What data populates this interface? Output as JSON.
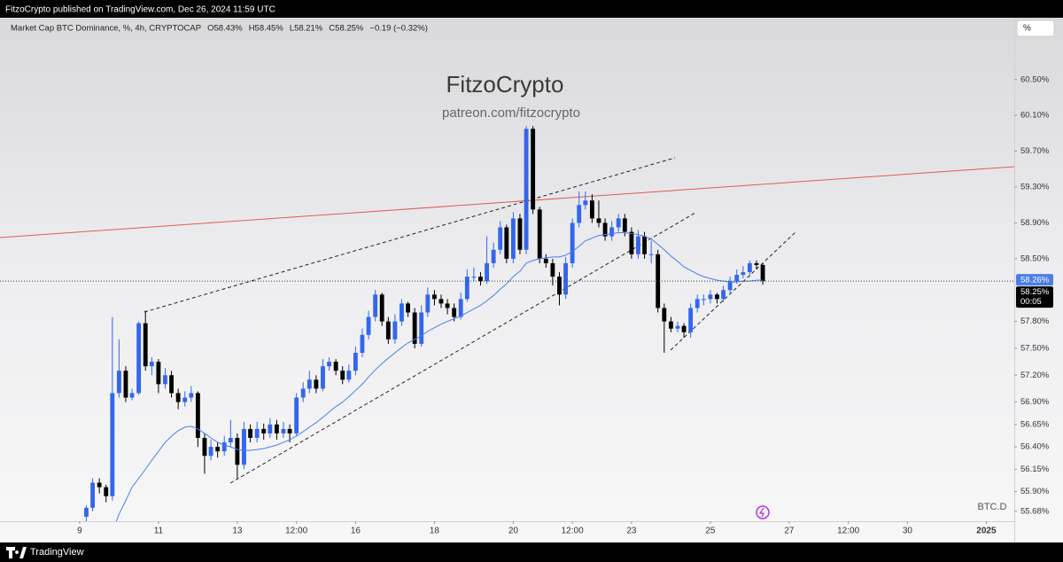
{
  "header": {
    "text": "FitzoCrypto published on TradingView.com, Dec 26, 2024 11:59 UTC"
  },
  "scale_button": "%",
  "footer": {
    "brand": "TradingView"
  },
  "chart_data": {
    "type": "candlestick",
    "legend_items": [
      "Market Cap BTC Dominance, %, 4h, CRYPTOCAP",
      "O58.43%",
      "H58.45%",
      "L58.21%",
      "C58.25%",
      "−0.19 (−0.32%)"
    ],
    "watermark": {
      "title": "FitzoCrypto",
      "subtitle": "patreon.com/fitzocrypto"
    },
    "symbol_label": "BTC.D",
    "up_color": "#3366ee",
    "down_color": "#000000",
    "x": [
      9.17,
      9.33,
      9.5,
      9.67,
      9.83,
      10,
      10.17,
      10.33,
      10.5,
      10.67,
      10.83,
      11,
      11.17,
      11.33,
      11.5,
      11.67,
      11.83,
      12,
      12.17,
      12.33,
      12.5,
      12.67,
      12.83,
      13,
      13.17,
      13.33,
      13.5,
      13.67,
      13.83,
      14,
      14.17,
      14.33,
      14.5,
      14.67,
      14.83,
      15,
      15.17,
      15.33,
      15.5,
      15.67,
      15.83,
      16,
      16.17,
      16.33,
      16.5,
      16.67,
      16.83,
      17,
      17.17,
      17.33,
      17.5,
      17.67,
      17.83,
      18,
      18.17,
      18.33,
      18.5,
      18.67,
      18.83,
      19,
      19.17,
      19.33,
      19.5,
      19.67,
      19.83,
      20,
      20.17,
      20.33,
      20.5,
      20.67,
      20.83,
      21,
      21.17,
      21.33,
      21.5,
      21.67,
      21.83,
      22,
      22.17,
      22.33,
      22.5,
      22.67,
      22.83,
      23,
      23.17,
      23.33,
      23.5,
      23.67,
      23.83,
      24,
      24.17,
      24.33,
      24.5,
      24.67,
      24.83,
      25,
      25.17,
      25.33,
      25.5,
      25.67,
      25.83,
      26,
      26.17,
      26.33
    ],
    "open": [
      55.62,
      55.72,
      56.0,
      55.95,
      55.85,
      57.0,
      57.25,
      56.95,
      57.0,
      57.78,
      57.3,
      57.35,
      57.1,
      57.2,
      57.0,
      56.9,
      56.95,
      57.0,
      56.5,
      56.3,
      56.4,
      56.35,
      56.45,
      56.5,
      56.2,
      56.6,
      56.5,
      56.6,
      56.55,
      56.65,
      56.55,
      56.6,
      56.55,
      56.95,
      57.05,
      57.15,
      57.05,
      57.3,
      57.35,
      57.25,
      57.15,
      57.25,
      57.45,
      57.65,
      57.85,
      58.1,
      57.8,
      57.6,
      57.8,
      58.0,
      57.9,
      57.55,
      57.9,
      58.1,
      58.05,
      58.0,
      57.95,
      57.85,
      58.05,
      58.3,
      58.3,
      58.25,
      58.45,
      58.6,
      58.85,
      58.5,
      58.95,
      58.6,
      59.95,
      59.05,
      58.5,
      58.45,
      58.3,
      58.1,
      58.45,
      58.9,
      59.1,
      59.15,
      58.95,
      58.9,
      58.75,
      58.85,
      58.95,
      58.8,
      58.55,
      58.75,
      58.55,
      58.55,
      57.95,
      57.8,
      57.72,
      57.75,
      57.68,
      57.95,
      58.05,
      58.05,
      58.1,
      58.05,
      58.15,
      58.25,
      58.32,
      58.35,
      58.45,
      58.43
    ],
    "high": [
      55.75,
      56.05,
      56.05,
      55.98,
      57.85,
      57.6,
      57.3,
      57.05,
      57.8,
      57.92,
      57.4,
      57.38,
      57.28,
      57.25,
      57.05,
      57.02,
      57.08,
      57.02,
      56.55,
      56.48,
      56.45,
      56.52,
      56.7,
      56.55,
      56.68,
      56.65,
      56.68,
      56.66,
      56.72,
      56.7,
      56.68,
      56.65,
      57.0,
      57.12,
      57.25,
      57.2,
      57.38,
      57.4,
      57.38,
      57.3,
      57.32,
      57.52,
      57.72,
      57.92,
      58.15,
      58.12,
      57.85,
      57.88,
      58.05,
      58.02,
      57.95,
      57.98,
      58.18,
      58.15,
      58.1,
      58.05,
      58.0,
      58.12,
      58.38,
      58.4,
      58.35,
      58.75,
      58.68,
      58.92,
      58.88,
      59.02,
      59.0,
      59.98,
      59.98,
      59.08,
      58.55,
      58.5,
      58.35,
      58.52,
      58.95,
      59.25,
      59.25,
      59.22,
      59.15,
      58.95,
      58.92,
      59.0,
      59.0,
      58.85,
      58.82,
      58.8,
      58.7,
      58.6,
      58.0,
      57.85,
      57.8,
      57.78,
      58.0,
      58.1,
      58.1,
      58.15,
      58.12,
      58.2,
      58.3,
      58.38,
      58.42,
      58.48,
      58.48,
      58.45
    ],
    "low": [
      55.5,
      55.68,
      55.88,
      55.78,
      55.8,
      56.95,
      56.9,
      56.92,
      56.98,
      57.25,
      57.2,
      57.0,
      57.05,
      56.95,
      56.82,
      56.85,
      56.9,
      56.4,
      56.1,
      56.25,
      56.28,
      56.3,
      56.4,
      56.05,
      56.15,
      56.45,
      56.45,
      56.48,
      56.5,
      56.48,
      56.5,
      56.45,
      56.52,
      56.9,
      57.0,
      57.0,
      57.02,
      57.25,
      57.2,
      57.1,
      57.12,
      57.2,
      57.4,
      57.6,
      57.8,
      57.75,
      57.55,
      57.55,
      57.75,
      57.85,
      57.5,
      57.52,
      57.85,
      57.98,
      57.95,
      57.88,
      57.8,
      57.82,
      58.02,
      58.25,
      58.2,
      58.22,
      58.4,
      58.55,
      58.45,
      58.45,
      58.55,
      58.55,
      59.0,
      58.45,
      58.4,
      58.2,
      57.98,
      58.05,
      58.4,
      58.85,
      59.05,
      58.9,
      58.85,
      58.7,
      58.7,
      58.8,
      58.75,
      58.5,
      58.5,
      58.5,
      58.45,
      57.9,
      57.45,
      57.68,
      57.68,
      57.62,
      57.62,
      57.9,
      57.98,
      58.0,
      58.0,
      58.02,
      58.1,
      58.22,
      58.28,
      58.3,
      58.38,
      58.21
    ],
    "close": [
      55.72,
      56.0,
      55.95,
      55.85,
      57.0,
      57.25,
      56.95,
      57.0,
      57.78,
      57.3,
      57.35,
      57.1,
      57.2,
      57.0,
      56.9,
      56.95,
      57.0,
      56.5,
      56.3,
      56.4,
      56.35,
      56.45,
      56.5,
      56.2,
      56.6,
      56.5,
      56.6,
      56.55,
      56.65,
      56.55,
      56.6,
      56.55,
      56.95,
      57.05,
      57.15,
      57.05,
      57.3,
      57.35,
      57.25,
      57.15,
      57.25,
      57.45,
      57.65,
      57.85,
      58.1,
      57.8,
      57.6,
      57.8,
      58.0,
      57.9,
      57.55,
      57.9,
      58.1,
      58.05,
      58.0,
      57.95,
      57.85,
      58.05,
      58.3,
      58.3,
      58.25,
      58.45,
      58.6,
      58.85,
      58.5,
      58.95,
      58.6,
      59.95,
      59.05,
      58.5,
      58.45,
      58.3,
      58.1,
      58.45,
      58.9,
      59.1,
      59.15,
      58.95,
      58.9,
      58.75,
      58.85,
      58.95,
      58.8,
      58.55,
      58.75,
      58.55,
      58.55,
      57.95,
      57.8,
      57.72,
      57.75,
      57.68,
      57.95,
      58.05,
      58.05,
      58.1,
      58.05,
      58.15,
      58.25,
      58.32,
      58.35,
      58.45,
      58.43,
      58.25
    ],
    "overlay": {
      "type": "line",
      "color": "#4a7ee8",
      "last_label": "58.26%",
      "values": [
        null,
        null,
        null,
        null,
        55.45,
        55.65,
        55.8,
        55.95,
        56.05,
        56.15,
        56.25,
        56.35,
        56.45,
        56.52,
        56.58,
        56.62,
        56.63,
        56.6,
        56.55,
        56.5,
        56.45,
        56.42,
        56.4,
        56.37,
        56.36,
        56.36,
        56.37,
        56.38,
        56.4,
        56.42,
        56.45,
        56.48,
        56.52,
        56.57,
        56.62,
        56.67,
        56.73,
        56.79,
        56.85,
        56.9,
        56.96,
        57.03,
        57.1,
        57.18,
        57.26,
        57.33,
        57.39,
        57.45,
        57.51,
        57.56,
        57.6,
        57.64,
        57.69,
        57.73,
        57.77,
        57.8,
        57.83,
        57.86,
        57.9,
        57.94,
        57.98,
        58.03,
        58.09,
        58.16,
        58.22,
        58.3,
        58.36,
        58.45,
        58.48,
        58.5,
        58.51,
        58.52,
        58.52,
        58.54,
        58.58,
        58.64,
        58.7,
        58.73,
        58.76,
        58.77,
        58.78,
        58.79,
        58.79,
        58.78,
        58.77,
        58.75,
        58.72,
        58.66,
        58.6,
        58.53,
        58.47,
        58.41,
        58.37,
        58.33,
        58.3,
        58.28,
        58.26,
        58.25,
        58.24,
        58.24,
        58.25,
        58.25,
        58.26,
        58.26
      ]
    },
    "last_price": {
      "value": 58.25,
      "label": "58.25%",
      "countdown": "00:05"
    },
    "xlim": [
      6.98,
      32.71
    ],
    "xticks": [
      9,
      11,
      13,
      {
        "value": 14.5,
        "label": "12:00"
      },
      16,
      18,
      20,
      {
        "value": 21.5,
        "label": "12:00"
      },
      23,
      25,
      27,
      {
        "value": 28.5,
        "label": "12:00"
      },
      30,
      {
        "value": 32,
        "label": "2025"
      }
    ],
    "ylim": [
      55.57,
      61.19
    ],
    "yticks": [
      {
        "value": 60.5,
        "label": "60.50%"
      },
      {
        "value": 60.1,
        "label": "60.10%"
      },
      {
        "value": 59.7,
        "label": "59.70%"
      },
      {
        "value": 59.3,
        "label": "59.30%"
      },
      {
        "value": 58.9,
        "label": "58.90%"
      },
      {
        "value": 58.5,
        "label": "58.50%"
      },
      {
        "value": 57.8,
        "label": "57.80%"
      },
      {
        "value": 57.5,
        "label": "57.50%"
      },
      {
        "value": 57.2,
        "label": "57.20%"
      },
      {
        "value": 56.9,
        "label": "56.90%"
      },
      {
        "value": 56.65,
        "label": "56.65%"
      },
      {
        "value": 56.4,
        "label": "56.40%"
      },
      {
        "value": 56.15,
        "label": "56.15%"
      },
      {
        "value": 55.9,
        "label": "55.90%"
      },
      {
        "value": 55.68,
        "label": "55.68%"
      }
    ],
    "grid": false
  }
}
